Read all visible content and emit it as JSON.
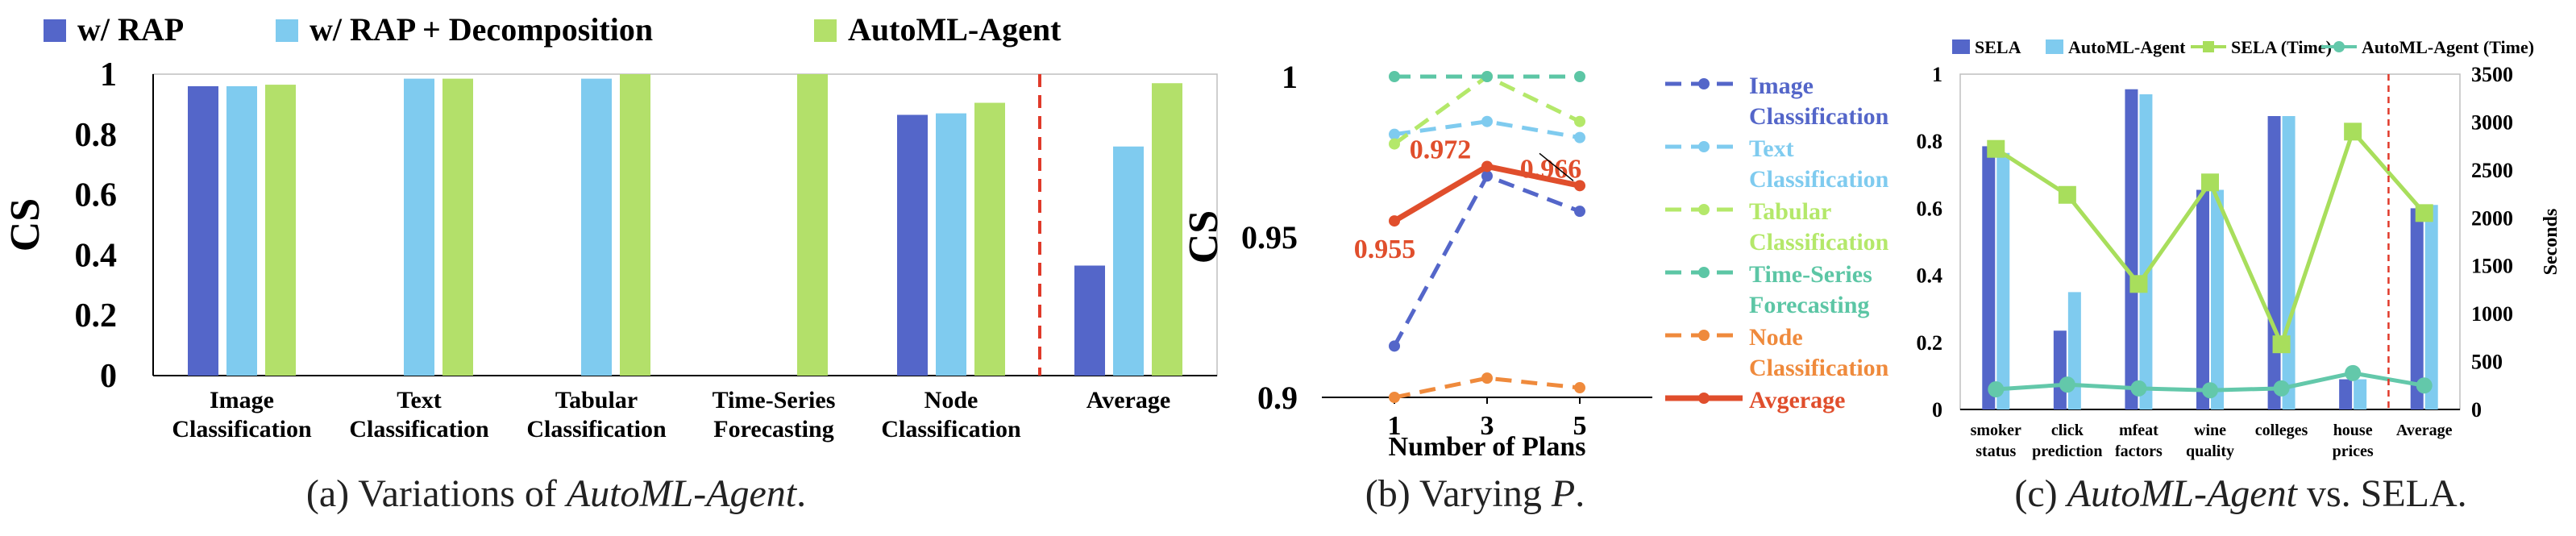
{
  "colors": {
    "rap": "#5466c9",
    "decomp": "#7fcbef",
    "automl": "#b3e06a",
    "orange": "#ef8a3c",
    "red": "#e04e2c",
    "teal": "#5cc6a5",
    "lightgreen": "#b4e86a",
    "sela_line": "#a8de5c",
    "teal_line": "#63c8aa",
    "dash_red": "#e03a2a",
    "axis": "#000000",
    "grid": "#d9d9d9"
  },
  "captions": {
    "a_prefix": "(a) Variations of ",
    "a_italic": "AutoML-Agent",
    "a_suffix": ".",
    "b_prefix": "(b) Varying ",
    "b_italic": "P",
    "b_suffix": ".",
    "c_prefix": "(c) ",
    "c_italic": "AutoML-Agent",
    "c_suffix": " vs. SELA."
  },
  "chart_data": [
    {
      "type": "bar",
      "title": "",
      "ylabel": "CS",
      "ylim": [
        0,
        1
      ],
      "yticks": [
        "0",
        "0.2",
        "0.4",
        "0.6",
        "0.8",
        "1"
      ],
      "categories": [
        [
          "Image",
          "Classification"
        ],
        [
          "Text",
          "Classification"
        ],
        [
          "Tabular",
          "Classification"
        ],
        [
          "Time-Series",
          "Forecasting"
        ],
        [
          "Node",
          "Classification"
        ],
        [
          "Average"
        ]
      ],
      "series": [
        {
          "name": "w/ RAP",
          "color": "rap",
          "values": [
            0.96,
            null,
            null,
            null,
            0.865,
            0.365
          ]
        },
        {
          "name": "w/ RAP + Decomposition",
          "color": "decomp",
          "values": [
            0.96,
            0.985,
            0.985,
            null,
            0.87,
            0.76
          ]
        },
        {
          "name": "AutoML-Agent",
          "color": "automl",
          "values": [
            0.965,
            0.985,
            1.0,
            1.0,
            0.905,
            0.97
          ]
        }
      ],
      "divider_after_category": 4,
      "legend_position": "top"
    },
    {
      "type": "line",
      "ylabel": "CS",
      "xlabel": "Number of Plans",
      "x": [
        1,
        3,
        5
      ],
      "ylim": [
        0.9,
        1.0
      ],
      "yticks": [
        "0.9",
        "0.95",
        "1"
      ],
      "series": [
        {
          "name": [
            "Image",
            "Classification"
          ],
          "color": "rap",
          "dashed": true,
          "values": [
            0.916,
            0.969,
            0.958
          ]
        },
        {
          "name": [
            "Text",
            "Classification"
          ],
          "color": "decomp",
          "dashed": true,
          "values": [
            0.982,
            0.986,
            0.981
          ]
        },
        {
          "name": [
            "Tabular",
            "Classification"
          ],
          "color": "lightgreen",
          "dashed": true,
          "values": [
            0.979,
            1.0,
            0.986
          ]
        },
        {
          "name": [
            "Time-Series",
            "Forecasting"
          ],
          "color": "teal",
          "dashed": true,
          "values": [
            1.0,
            1.0,
            1.0
          ]
        },
        {
          "name": [
            "Node",
            "Classification"
          ],
          "color": "orange",
          "dashed": true,
          "values": [
            0.9,
            0.906,
            0.903
          ]
        },
        {
          "name": [
            "Avgerage"
          ],
          "color": "red",
          "dashed": false,
          "values": [
            0.955,
            0.972,
            0.966
          ]
        }
      ],
      "annotations": [
        "0.955",
        "0.972",
        "0.966"
      ],
      "legend_position": "right"
    },
    {
      "type": "bar+line",
      "ylim": [
        0,
        1
      ],
      "yticks": [
        "0",
        "0.2",
        "0.4",
        "0.6",
        "0.8",
        "1"
      ],
      "y2label": "Seconds",
      "y2lim": [
        0,
        3500
      ],
      "y2ticks": [
        "0",
        "500",
        "1000",
        "1500",
        "2000",
        "2500",
        "3000",
        "3500"
      ],
      "categories": [
        [
          "smoker",
          "status"
        ],
        [
          "click",
          "prediction"
        ],
        [
          "mfeat",
          "factors"
        ],
        [
          "wine",
          "quality"
        ],
        [
          "colleges"
        ],
        [
          "house",
          "prices"
        ],
        [
          "Average"
        ]
      ],
      "bars": [
        {
          "name": "SELA",
          "color": "rap",
          "values": [
            0.785,
            0.235,
            0.955,
            0.655,
            0.875,
            0.09,
            0.6
          ]
        },
        {
          "name": "AutoML-Agent",
          "color": "decomp",
          "values": [
            0.765,
            0.35,
            0.94,
            0.655,
            0.875,
            0.09,
            0.61
          ]
        }
      ],
      "lines": [
        {
          "name": "SELA (Time)",
          "color": "sela_line",
          "marker": "square",
          "values": [
            2720,
            2240,
            1310,
            2370,
            680,
            2900,
            2050
          ]
        },
        {
          "name": "AutoML-Agent (Time)",
          "color": "teal_line",
          "marker": "circle",
          "values": [
            210,
            260,
            220,
            200,
            220,
            380,
            250
          ]
        }
      ],
      "divider_after_category": 5,
      "legend_position": "top"
    }
  ]
}
